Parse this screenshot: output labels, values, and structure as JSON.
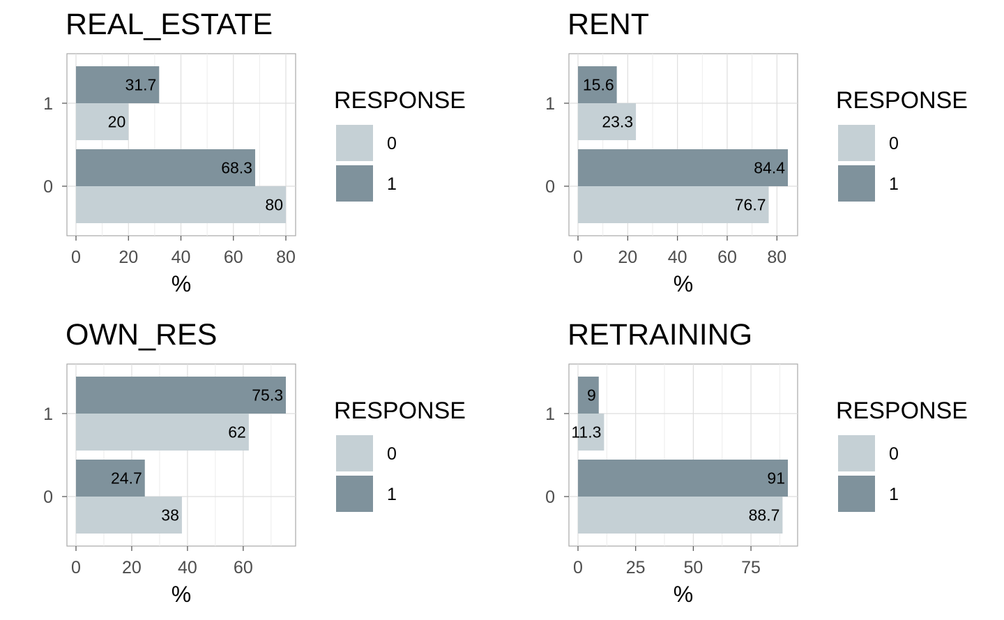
{
  "colors": {
    "response_0": "#c5d0d5",
    "response_1": "#7f929c",
    "grid": "#dedede",
    "panel_border": "#a8a8a8",
    "text": "#4d4d4d"
  },
  "chart_data": [
    {
      "type": "bar",
      "orientation": "horizontal",
      "title": "REAL_ESTATE",
      "categories": [
        "0",
        "1"
      ],
      "xlabel": "%",
      "xlim": [
        0,
        80
      ],
      "xticks": [
        0,
        20,
        40,
        60,
        80
      ],
      "legend_title": "RESPONSE",
      "legend_position": "right",
      "series": [
        {
          "name": "0",
          "values": [
            80,
            20
          ],
          "labels": [
            "80",
            "20"
          ]
        },
        {
          "name": "1",
          "values": [
            68.3,
            31.7
          ],
          "labels": [
            "68.3",
            "31.7"
          ]
        }
      ]
    },
    {
      "type": "bar",
      "orientation": "horizontal",
      "title": "RENT",
      "categories": [
        "0",
        "1"
      ],
      "xlabel": "%",
      "xlim": [
        0,
        84.4
      ],
      "xticks": [
        0,
        20,
        40,
        60,
        80
      ],
      "legend_title": "RESPONSE",
      "legend_position": "right",
      "series": [
        {
          "name": "0",
          "values": [
            76.7,
            23.3
          ],
          "labels": [
            "76.7",
            "23.3"
          ]
        },
        {
          "name": "1",
          "values": [
            84.4,
            15.6
          ],
          "labels": [
            "84.4",
            "15.6"
          ]
        }
      ]
    },
    {
      "type": "bar",
      "orientation": "horizontal",
      "title": "OWN_RES",
      "categories": [
        "0",
        "1"
      ],
      "xlabel": "%",
      "xlim": [
        0,
        75.3
      ],
      "xticks": [
        0,
        20,
        40,
        60
      ],
      "legend_title": "RESPONSE",
      "legend_position": "right",
      "series": [
        {
          "name": "0",
          "values": [
            38,
            62
          ],
          "labels": [
            "38",
            "62"
          ]
        },
        {
          "name": "1",
          "values": [
            24.7,
            75.3
          ],
          "labels": [
            "24.7",
            "75.3"
          ]
        }
      ]
    },
    {
      "type": "bar",
      "orientation": "horizontal",
      "title": "RETRAINING",
      "categories": [
        "0",
        "1"
      ],
      "xlabel": "%",
      "xlim": [
        0,
        91
      ],
      "xticks": [
        0,
        25,
        50,
        75
      ],
      "legend_title": "RESPONSE",
      "legend_position": "right",
      "series": [
        {
          "name": "0",
          "values": [
            88.7,
            11.3
          ],
          "labels": [
            "88.7",
            "11.3"
          ]
        },
        {
          "name": "1",
          "values": [
            91,
            9
          ],
          "labels": [
            "91",
            "9"
          ]
        }
      ]
    }
  ]
}
